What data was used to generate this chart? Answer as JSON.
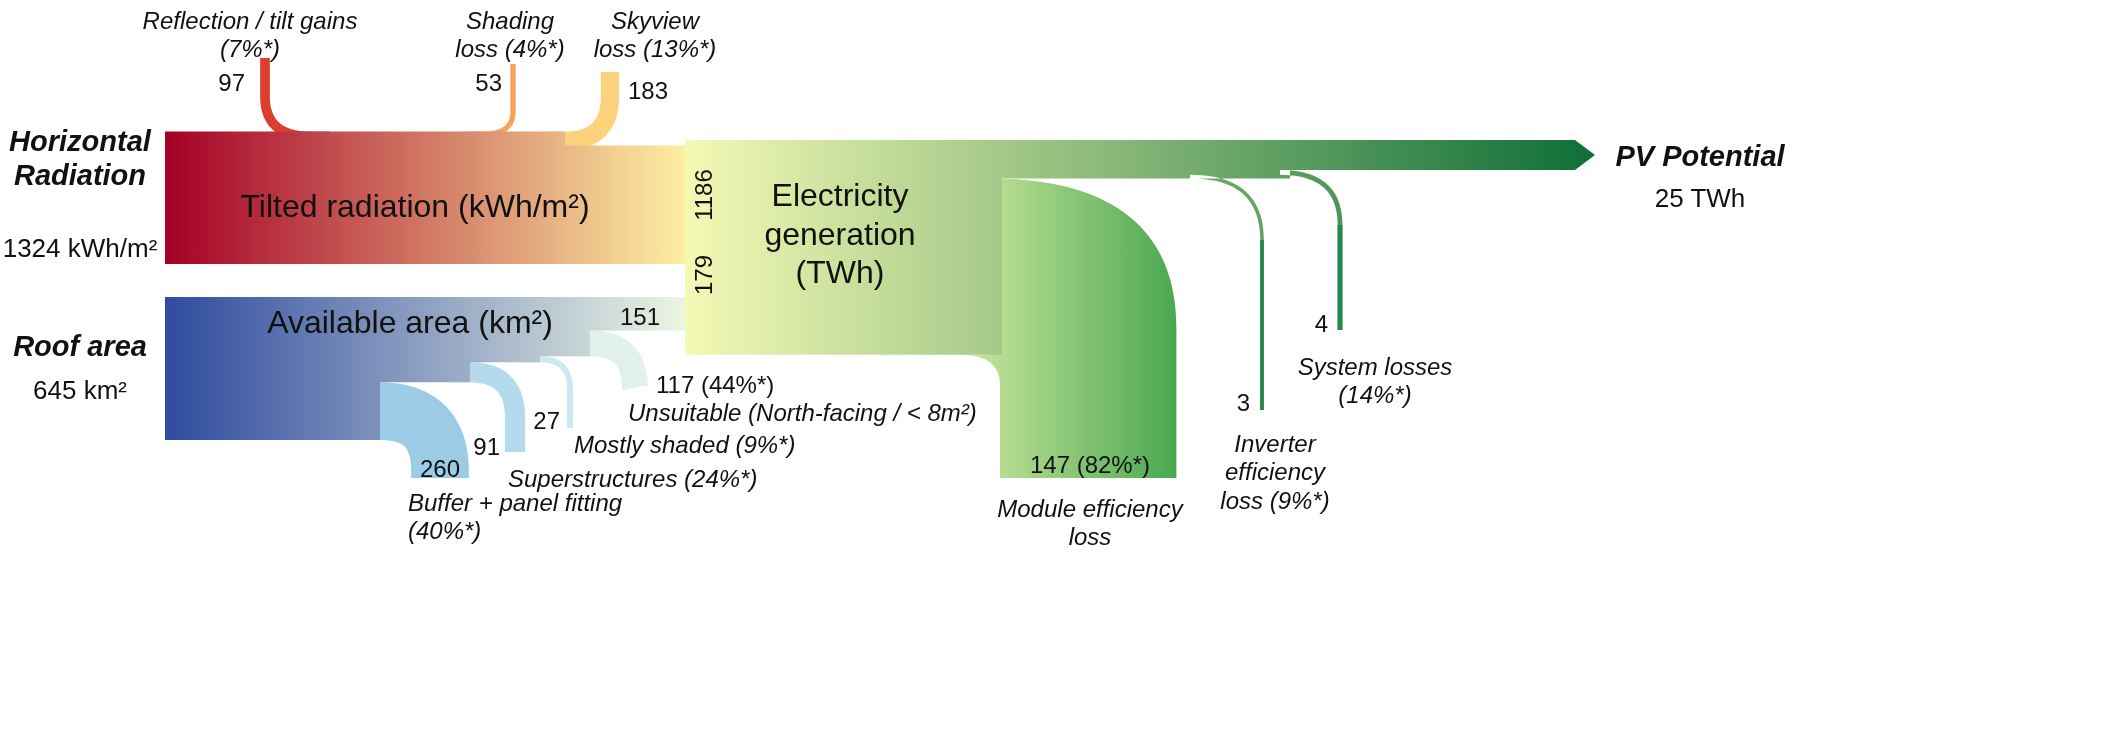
{
  "chart_data": {
    "type": "other",
    "categories": [
      "Horizontal Radiation",
      "Reflection / tilt gains (7%*)",
      "Shading loss (4%*)",
      "Skyview loss (13%*)",
      "Tilted radiation (kWh/m²)",
      "Roof area",
      "Buffer + panel fitting (40%*)",
      "Superstructures (24%*)",
      "Mostly shaded (9%*)",
      "Unsuitable (North-facing / < 8m²)",
      "Available area (km²)",
      "Electricity generation (TWh)",
      "Module efficiency loss",
      "Inverter efficiency loss (9%*)",
      "System losses (14%*)",
      "PV Potential"
    ],
    "values": [
      1324,
      97,
      53,
      183,
      1186,
      645,
      260,
      91,
      27,
      117,
      151,
      179,
      147,
      3,
      4,
      25
    ],
    "value_labels": [
      "1324 kWh/m²",
      "97",
      "53",
      "183",
      "1186",
      "645 km²",
      "260",
      "91",
      "27",
      "117 (44%*)",
      "151",
      "179",
      "147 (82%*)",
      "3",
      "4",
      "25 TWh"
    ],
    "colors": [
      "#a50026",
      "#dd3d2c",
      "#f6a35c",
      "#fdd27c",
      "#fef1a3",
      "#2f4b9f",
      "#9ccbe6",
      "#b5daed",
      "#cde8f3",
      "#e2f1ea",
      "#eef7e4",
      "#f4f9b4",
      "#4aa851",
      "#24884a",
      "#24884a",
      "#0d6e36"
    ]
  }
}
